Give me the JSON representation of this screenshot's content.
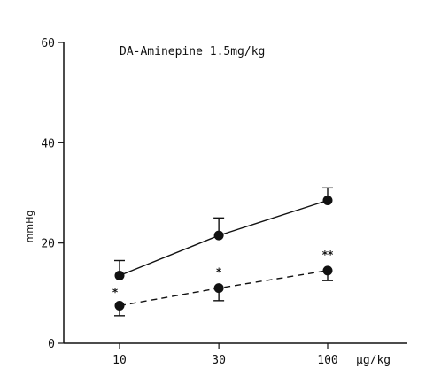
{
  "chart_data": {
    "type": "line",
    "title": "DA-Aminepine 1.5mg/kg",
    "xlabel": "µg/kg",
    "ylabel": "mmHg",
    "x_scale": "log",
    "x": [
      10,
      30,
      100
    ],
    "x_tick_labels": [
      "10",
      "30",
      "100"
    ],
    "ylim": [
      0,
      60
    ],
    "y_ticks": [
      0,
      20,
      40,
      60
    ],
    "y_tick_labels": [
      "0",
      "20",
      "40",
      "60"
    ],
    "grid": false,
    "legend": "none",
    "series": [
      {
        "line_style": "solid",
        "values": [
          13.5,
          21.5,
          28.5
        ],
        "errors": [
          3,
          3.5,
          2.5
        ],
        "error_direction": "up",
        "significance": [
          "",
          "",
          ""
        ]
      },
      {
        "line_style": "dashed",
        "values": [
          7.5,
          11,
          14.5
        ],
        "errors": [
          2,
          2.5,
          2
        ],
        "error_direction": "down",
        "significance": [
          "*",
          "*",
          "**"
        ]
      }
    ]
  }
}
